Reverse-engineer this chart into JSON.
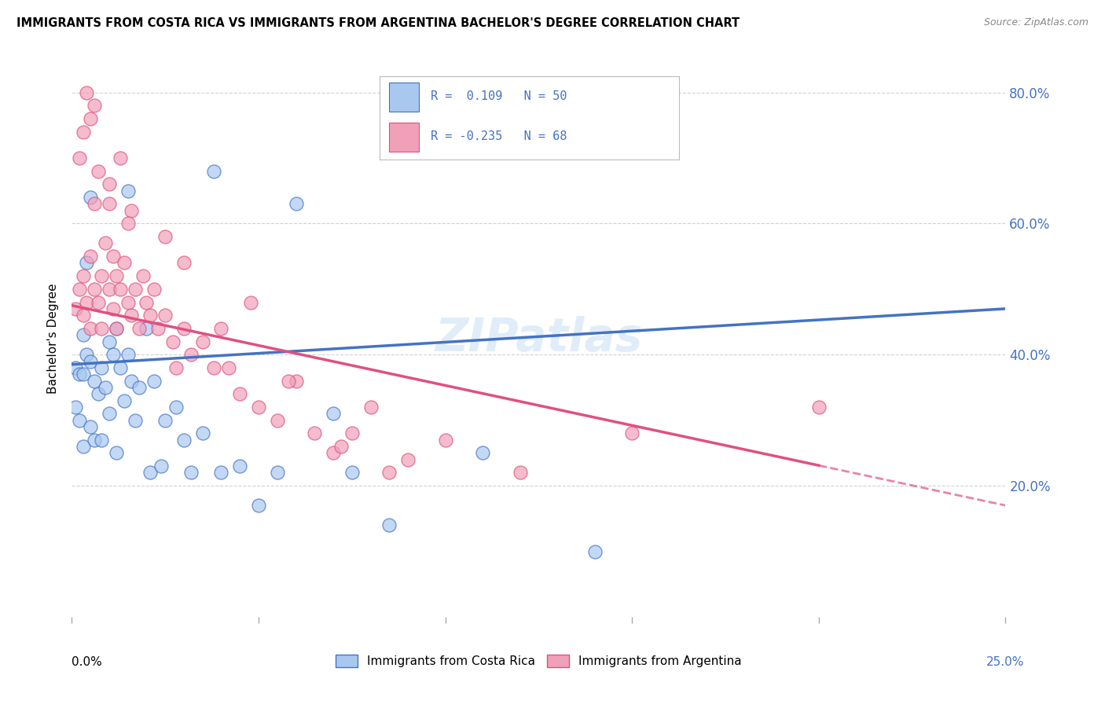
{
  "title": "IMMIGRANTS FROM COSTA RICA VS IMMIGRANTS FROM ARGENTINA BACHELOR'S DEGREE CORRELATION CHART",
  "source": "Source: ZipAtlas.com",
  "ylabel": "Bachelor's Degree",
  "xlim": [
    0.0,
    25.0
  ],
  "ylim": [
    0.0,
    85.0
  ],
  "yticks": [
    20.0,
    40.0,
    60.0,
    80.0
  ],
  "color_blue": "#A8C8F0",
  "color_pink": "#F0A0B8",
  "color_blue_line": "#4472C4",
  "color_pink_line": "#E05080",
  "watermark": "ZIPatlas",
  "legend_entries": [
    "Immigrants from Costa Rica",
    "Immigrants from Argentina"
  ],
  "blue_line_x0": 0.0,
  "blue_line_y0": 38.5,
  "blue_line_x1": 25.0,
  "blue_line_y1": 47.0,
  "pink_line_x0": 0.0,
  "pink_line_y0": 47.5,
  "pink_line_x1": 25.0,
  "pink_line_y1": 17.0,
  "pink_solid_end": 20.0,
  "costa_rica_x": [
    0.1,
    0.1,
    0.2,
    0.2,
    0.3,
    0.3,
    0.3,
    0.4,
    0.5,
    0.5,
    0.6,
    0.6,
    0.7,
    0.8,
    0.8,
    0.9,
    1.0,
    1.0,
    1.1,
    1.2,
    1.2,
    1.3,
    1.4,
    1.5,
    1.6,
    1.7,
    1.8,
    2.0,
    2.1,
    2.2,
    2.4,
    2.5,
    2.8,
    3.0,
    3.2,
    3.5,
    4.0,
    4.5,
    5.0,
    5.5,
    7.0,
    7.5,
    8.5,
    11.0,
    14.0,
    0.4,
    0.5,
    1.5,
    3.8,
    6.0
  ],
  "costa_rica_y": [
    38.0,
    32.0,
    37.0,
    30.0,
    43.0,
    37.0,
    26.0,
    40.0,
    39.0,
    29.0,
    36.0,
    27.0,
    34.0,
    38.0,
    27.0,
    35.0,
    42.0,
    31.0,
    40.0,
    44.0,
    25.0,
    38.0,
    33.0,
    40.0,
    36.0,
    30.0,
    35.0,
    44.0,
    22.0,
    36.0,
    23.0,
    30.0,
    32.0,
    27.0,
    22.0,
    28.0,
    22.0,
    23.0,
    17.0,
    22.0,
    31.0,
    22.0,
    14.0,
    25.0,
    10.0,
    54.0,
    64.0,
    65.0,
    68.0,
    63.0
  ],
  "argentina_x": [
    0.1,
    0.2,
    0.2,
    0.3,
    0.3,
    0.4,
    0.5,
    0.5,
    0.6,
    0.6,
    0.7,
    0.8,
    0.8,
    0.9,
    1.0,
    1.0,
    1.1,
    1.1,
    1.2,
    1.2,
    1.3,
    1.4,
    1.5,
    1.6,
    1.7,
    1.8,
    1.9,
    2.0,
    2.1,
    2.2,
    2.3,
    2.5,
    2.7,
    3.0,
    3.2,
    3.5,
    3.8,
    4.0,
    4.2,
    4.5,
    5.0,
    5.5,
    6.0,
    6.5,
    7.0,
    7.5,
    8.0,
    9.0,
    10.0,
    12.0,
    15.0,
    20.0,
    0.3,
    0.5,
    0.7,
    1.0,
    1.3,
    1.6,
    2.5,
    3.0,
    4.8,
    5.8,
    7.2,
    8.5,
    0.4,
    0.6,
    1.5,
    2.8
  ],
  "argentina_y": [
    47.0,
    50.0,
    70.0,
    52.0,
    46.0,
    48.0,
    55.0,
    44.0,
    50.0,
    63.0,
    48.0,
    52.0,
    44.0,
    57.0,
    50.0,
    63.0,
    55.0,
    47.0,
    52.0,
    44.0,
    50.0,
    54.0,
    48.0,
    46.0,
    50.0,
    44.0,
    52.0,
    48.0,
    46.0,
    50.0,
    44.0,
    46.0,
    42.0,
    44.0,
    40.0,
    42.0,
    38.0,
    44.0,
    38.0,
    34.0,
    32.0,
    30.0,
    36.0,
    28.0,
    25.0,
    28.0,
    32.0,
    24.0,
    27.0,
    22.0,
    28.0,
    32.0,
    74.0,
    76.0,
    68.0,
    66.0,
    70.0,
    62.0,
    58.0,
    54.0,
    48.0,
    36.0,
    26.0,
    22.0,
    80.0,
    78.0,
    60.0,
    38.0
  ]
}
